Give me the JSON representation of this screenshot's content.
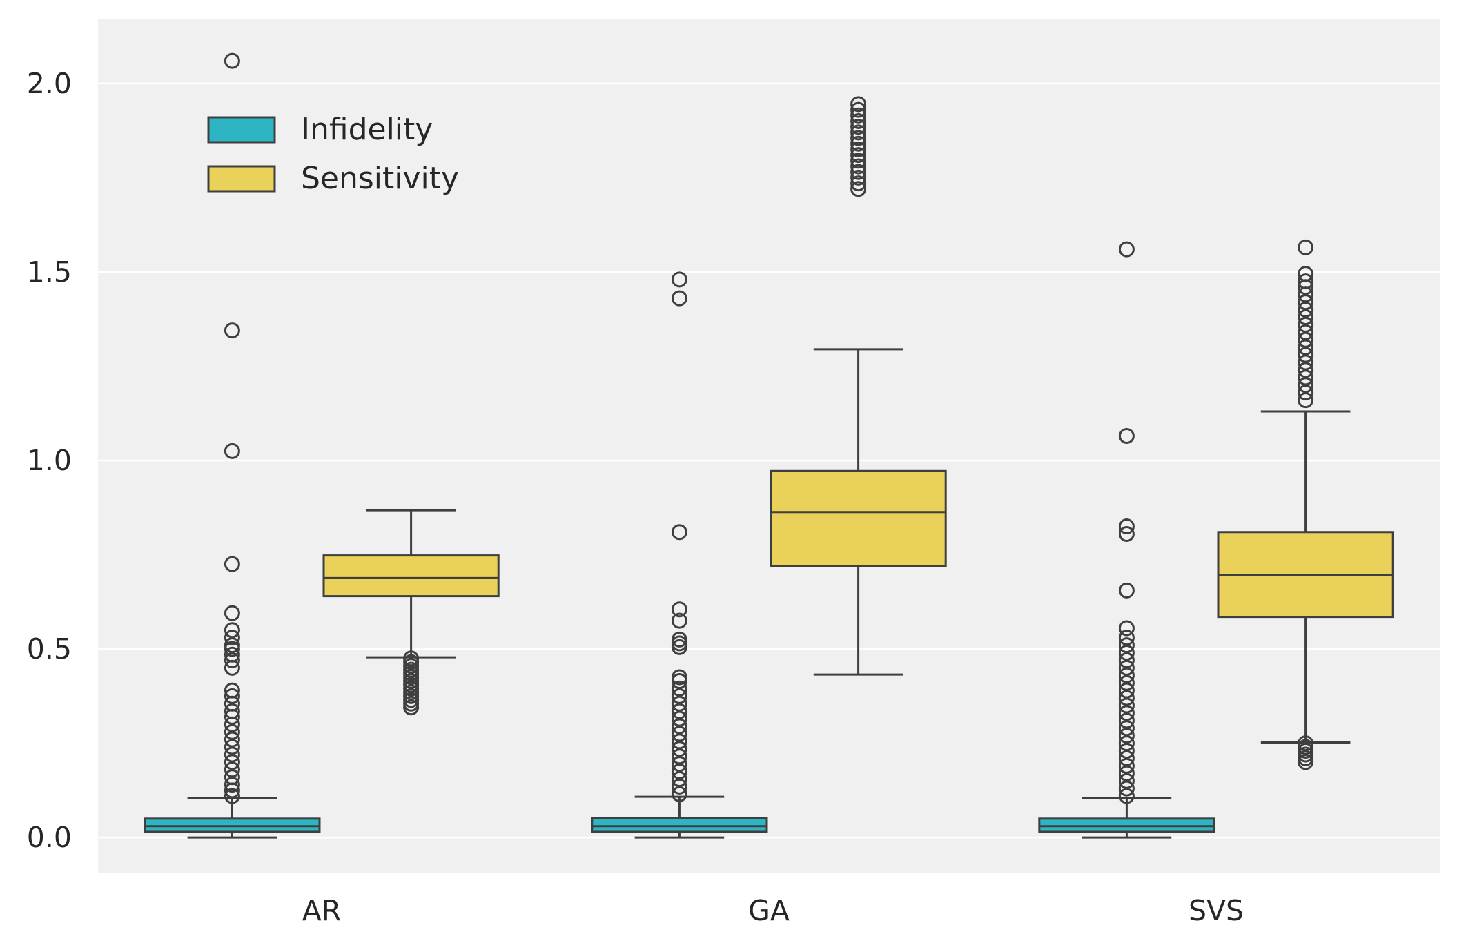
{
  "chart_data": {
    "type": "boxplot",
    "categories": [
      "AR",
      "GA",
      "SVS"
    ],
    "ylim": [
      -0.095,
      2.17
    ],
    "yticks": [
      0.0,
      0.5,
      1.0,
      1.5,
      2.0
    ],
    "ytick_labels": [
      "0.0",
      "0.5",
      "1.0",
      "1.5",
      "2.0"
    ],
    "grid": true,
    "legend": "upper-left",
    "series": [
      {
        "name": "Infidelity",
        "color": "#2eb5c4",
        "stats": [
          {
            "whislo": 0.0,
            "q1": 0.015,
            "med": 0.03,
            "q3": 0.05,
            "whishi": 0.105,
            "outliers": [
              2.06,
              1.345,
              1.025,
              0.725,
              0.595,
              0.55,
              0.53,
              0.51,
              0.5,
              0.485,
              0.47,
              0.45,
              0.39,
              0.375,
              0.355,
              0.335,
              0.32,
              0.3,
              0.28,
              0.26,
              0.24,
              0.22,
              0.2,
              0.18,
              0.16,
              0.14,
              0.125,
              0.11
            ]
          },
          {
            "whislo": 0.0,
            "q1": 0.015,
            "med": 0.03,
            "q3": 0.052,
            "whishi": 0.108,
            "outliers": [
              1.48,
              1.43,
              0.81,
              0.605,
              0.575,
              0.525,
              0.515,
              0.505,
              0.425,
              0.415,
              0.395,
              0.375,
              0.355,
              0.335,
              0.315,
              0.295,
              0.275,
              0.255,
              0.235,
              0.215,
              0.195,
              0.175,
              0.155,
              0.135,
              0.115
            ]
          },
          {
            "whislo": 0.0,
            "q1": 0.015,
            "med": 0.03,
            "q3": 0.05,
            "whishi": 0.105,
            "outliers": [
              1.56,
              1.065,
              0.825,
              0.805,
              0.655,
              0.555,
              0.53,
              0.51,
              0.49,
              0.47,
              0.45,
              0.43,
              0.41,
              0.39,
              0.37,
              0.35,
              0.33,
              0.31,
              0.29,
              0.27,
              0.25,
              0.23,
              0.21,
              0.19,
              0.17,
              0.15,
              0.13,
              0.11
            ]
          }
        ]
      },
      {
        "name": "Sensitivity",
        "color": "#e9d15a",
        "stats": [
          {
            "whislo": 0.478,
            "q1": 0.64,
            "med": 0.688,
            "q3": 0.748,
            "whishi": 0.868,
            "outliers": [
              0.475,
              0.465,
              0.455,
              0.445,
              0.435,
              0.425,
              0.415,
              0.405,
              0.395,
              0.385,
              0.375,
              0.365,
              0.355,
              0.345
            ]
          },
          {
            "whislo": 0.432,
            "q1": 0.72,
            "med": 0.863,
            "q3": 0.972,
            "whishi": 1.295,
            "outliers": [
              1.945,
              1.93,
              1.915,
              1.9,
              1.885,
              1.87,
              1.855,
              1.84,
              1.825,
              1.81,
              1.795,
              1.78,
              1.765,
              1.75,
              1.735,
              1.72
            ]
          },
          {
            "whislo": 0.252,
            "q1": 0.585,
            "med": 0.695,
            "q3": 0.81,
            "whishi": 1.13,
            "outliers": [
              1.565,
              1.495,
              1.475,
              1.46,
              1.44,
              1.42,
              1.4,
              1.38,
              1.36,
              1.34,
              1.32,
              1.3,
              1.28,
              1.26,
              1.24,
              1.22,
              1.2,
              1.18,
              1.16,
              0.25,
              0.24,
              0.23,
              0.22,
              0.21,
              0.2
            ]
          }
        ]
      }
    ]
  }
}
